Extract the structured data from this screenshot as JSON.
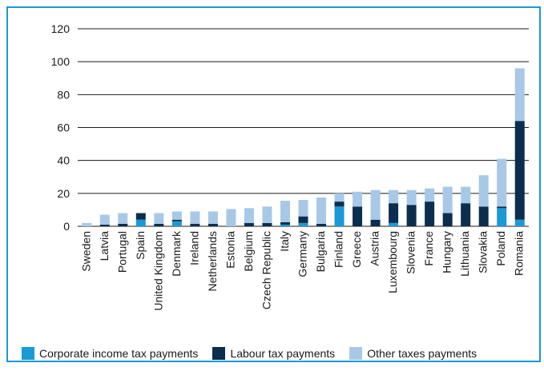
{
  "chart_data": {
    "type": "bar",
    "stacked": true,
    "title": "",
    "xlabel": "",
    "ylabel": "",
    "ylim": [
      0,
      120
    ],
    "yticks": [
      0,
      20,
      40,
      60,
      80,
      100,
      120
    ],
    "grid": "horizontal",
    "legend_position": "bottom",
    "categories": [
      "Sweden",
      "Latvia",
      "Portugal",
      "Spain",
      "United Kingdom",
      "Denmark",
      "Ireland",
      "Netherlands",
      "Estonia",
      "Belgium",
      "Czech Republic",
      "Italy",
      "Germany",
      "Bulgaria",
      "Finland",
      "Greece",
      "Austria",
      "Luxembourg",
      "Slovenia",
      "France",
      "Hungary",
      "Lithuania",
      "Slovakia",
      "Poland",
      "Romania"
    ],
    "series": [
      {
        "name": "Corporate income tax payments",
        "color": "#1a9ad6",
        "values": [
          0,
          0,
          0,
          4,
          0,
          3,
          0,
          0,
          0,
          0,
          0,
          1,
          2,
          0,
          12,
          0,
          0,
          2,
          0,
          0,
          0,
          0,
          0,
          11,
          4
        ]
      },
      {
        "name": "Labour tax payments",
        "color": "#0b2e4f",
        "values": [
          0,
          1,
          1.5,
          4,
          1.5,
          1,
          1.5,
          1.5,
          0,
          2,
          2,
          1.5,
          4,
          1.5,
          3,
          12,
          4,
          12,
          13,
          15,
          8,
          14,
          12,
          1,
          60
        ]
      },
      {
        "name": "Other taxes payments",
        "color": "#a8c8e8",
        "values": [
          2,
          6,
          6.5,
          0,
          6.5,
          5,
          7.5,
          7.5,
          10.5,
          9,
          10,
          13,
          10,
          16,
          5,
          9,
          18,
          8,
          9,
          8,
          16,
          10,
          19,
          29,
          32
        ]
      }
    ]
  },
  "legend": [
    {
      "label": "Corporate income tax payments",
      "color": "#1a9ad6"
    },
    {
      "label": "Labour tax payments",
      "color": "#0b2e4f"
    },
    {
      "label": "Other taxes payments",
      "color": "#a8c8e8"
    }
  ]
}
